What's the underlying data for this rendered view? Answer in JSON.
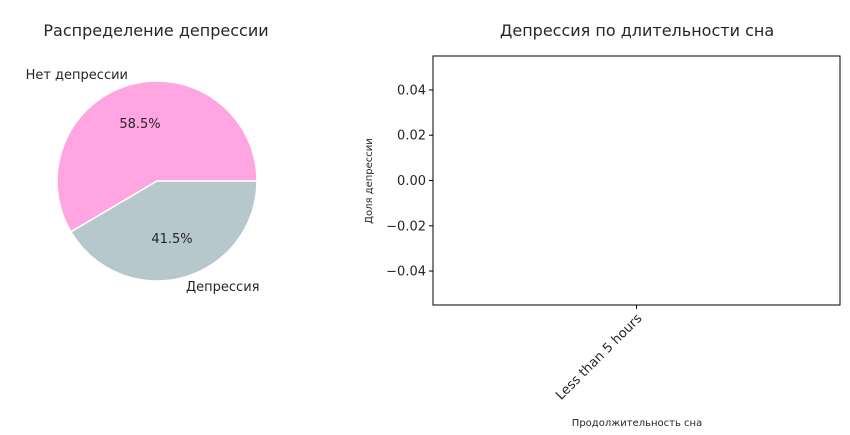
{
  "chart_data": [
    {
      "type": "pie",
      "title": "Распределение депрессии",
      "slices": [
        {
          "label": "Нет депрессии",
          "value": 58.5,
          "pct_label": "58.5%",
          "color": "#ffa6e2"
        },
        {
          "label": "Депрессия",
          "value": 41.5,
          "pct_label": "41.5%",
          "color": "#b7c8cd"
        }
      ],
      "start_angle_deg": 0,
      "direction": "counterclockwise"
    },
    {
      "type": "bar",
      "title": "Депрессия по длительности сна",
      "xlabel": "Продолжительность сна",
      "ylabel": "Доля депрессии",
      "categories": [
        "Less than 5 hours"
      ],
      "values": [
        0
      ],
      "ylim": [
        -0.055,
        0.055
      ],
      "yticks": [
        -0.04,
        -0.02,
        0.0,
        0.02,
        0.04
      ],
      "ytick_labels": [
        "−0.04",
        "−0.02",
        "0.00",
        "0.02",
        "0.04"
      ],
      "grid": false
    }
  ]
}
